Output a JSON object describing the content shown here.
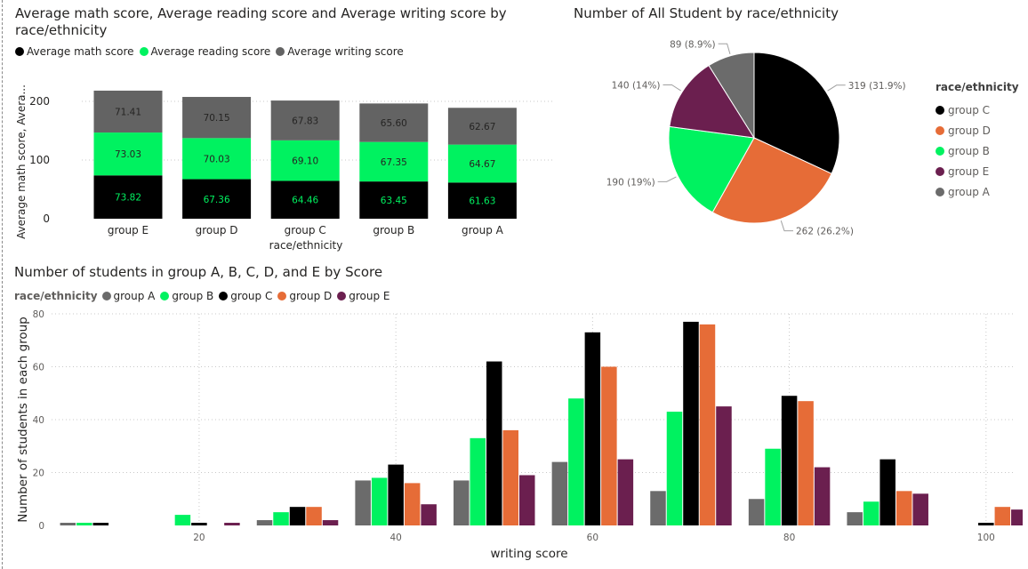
{
  "chart_data": [
    {
      "type": "bar",
      "stacked": true,
      "title": "Average math score, Average reading score and Average writing score by race/ethnicity",
      "xlabel": "race/ethnicity",
      "ylabel": "Average math score, Avera...",
      "categories": [
        "group E",
        "group D",
        "group C",
        "group B",
        "group A"
      ],
      "series": [
        {
          "name": "Average math score",
          "color": "#000000",
          "values": [
            73.82,
            67.36,
            64.46,
            63.45,
            61.63
          ],
          "labels": [
            "73.82",
            "67.36",
            "64.46",
            "63.45",
            "61.63"
          ]
        },
        {
          "name": "Average reading score",
          "color": "#00f260",
          "values": [
            73.03,
            70.03,
            69.1,
            67.35,
            64.67
          ],
          "labels": [
            "73.03",
            "70.03",
            "69.10",
            "67.35",
            "64.67"
          ]
        },
        {
          "name": "Average writing score",
          "color": "#636363",
          "values": [
            71.41,
            70.15,
            67.83,
            65.6,
            62.67
          ],
          "labels": [
            "71.41",
            "70.15",
            "67.83",
            "65.60",
            "62.67"
          ]
        }
      ],
      "yticks": [
        0,
        100,
        200
      ],
      "ytick_labels": [
        "0",
        "100",
        "200"
      ],
      "ylim": [
        0,
        230
      ],
      "legend": "top-left",
      "grid": true
    },
    {
      "type": "pie",
      "title": "Number of All Student by race/ethnicity",
      "legend_title": "race/ethnicity",
      "legend": "right",
      "slices": [
        {
          "label": "group C",
          "value": 319,
          "data_label": "319 (31.9%)",
          "color": "#000000"
        },
        {
          "label": "group D",
          "value": 262,
          "data_label": "262 (26.2%)",
          "color": "#e66c37"
        },
        {
          "label": "group B",
          "value": 190,
          "data_label": "190 (19%)",
          "color": "#00f260"
        },
        {
          "label": "group E",
          "value": 140,
          "data_label": "140 (14%)",
          "color": "#6b1f4f"
        },
        {
          "label": "group A",
          "value": 89,
          "data_label": "89 (8.9%)",
          "color": "#6b6b6b"
        }
      ]
    },
    {
      "type": "bar",
      "title": "Number of students in group A, B, C, D, and E by Score",
      "xlabel": "writing score",
      "ylabel": "Number of students in each group",
      "legend_title": "race/ethnicity",
      "legend": "top-left",
      "grid": true,
      "x": [
        10,
        20,
        30,
        40,
        50,
        60,
        70,
        80,
        90,
        100
      ],
      "xlim": [
        5,
        103
      ],
      "xticks": [
        20,
        40,
        60,
        80,
        100
      ],
      "xtick_labels": [
        "20",
        "40",
        "60",
        "80",
        "100"
      ],
      "ylim": [
        0,
        80
      ],
      "yticks": [
        0,
        20,
        40,
        60,
        80
      ],
      "ytick_labels": [
        "0",
        "20",
        "40",
        "60",
        "80"
      ],
      "series": [
        {
          "name": "group A",
          "color": "#6b6b6b",
          "values": [
            1,
            0,
            2,
            17,
            17,
            24,
            13,
            10,
            5,
            0
          ]
        },
        {
          "name": "group B",
          "color": "#00f260",
          "values": [
            1,
            4,
            5,
            18,
            33,
            48,
            43,
            29,
            9,
            0
          ]
        },
        {
          "name": "group C",
          "color": "#000000",
          "values": [
            1,
            1,
            7,
            23,
            62,
            73,
            77,
            49,
            25,
            1
          ]
        },
        {
          "name": "group D",
          "color": "#e66c37",
          "values": [
            0,
            0,
            7,
            16,
            36,
            60,
            76,
            47,
            13,
            7
          ]
        },
        {
          "name": "group E",
          "color": "#6b1f4f",
          "values": [
            0,
            1,
            2,
            8,
            19,
            25,
            45,
            22,
            12,
            6
          ]
        }
      ]
    }
  ]
}
